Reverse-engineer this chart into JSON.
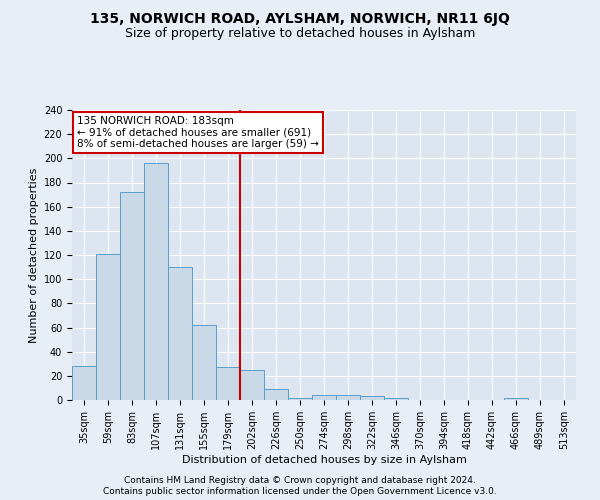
{
  "title1": "135, NORWICH ROAD, AYLSHAM, NORWICH, NR11 6JQ",
  "title2": "Size of property relative to detached houses in Aylsham",
  "xlabel": "Distribution of detached houses by size in Aylsham",
  "ylabel": "Number of detached properties",
  "categories": [
    "35sqm",
    "59sqm",
    "83sqm",
    "107sqm",
    "131sqm",
    "155sqm",
    "179sqm",
    "202sqm",
    "226sqm",
    "250sqm",
    "274sqm",
    "298sqm",
    "322sqm",
    "346sqm",
    "370sqm",
    "394sqm",
    "418sqm",
    "442sqm",
    "466sqm",
    "489sqm",
    "513sqm"
  ],
  "values": [
    28,
    121,
    172,
    196,
    110,
    62,
    27,
    25,
    9,
    2,
    4,
    4,
    3,
    2,
    0,
    0,
    0,
    0,
    2,
    0,
    0
  ],
  "bar_color": "#c9d9e8",
  "bar_edge_color": "#5a9ec9",
  "property_line_x": 6.5,
  "property_line_color": "#cc0000",
  "annotation_text": "135 NORWICH ROAD: 183sqm\n← 91% of detached houses are smaller (691)\n8% of semi-detached houses are larger (59) →",
  "annotation_box_color": "#ffffff",
  "annotation_box_edge_color": "#cc0000",
  "ylim": [
    0,
    240
  ],
  "yticks": [
    0,
    20,
    40,
    60,
    80,
    100,
    120,
    140,
    160,
    180,
    200,
    220,
    240
  ],
  "footer1": "Contains HM Land Registry data © Crown copyright and database right 2024.",
  "footer2": "Contains public sector information licensed under the Open Government Licence v3.0.",
  "background_color": "#e8eef5",
  "plot_background_color": "#dde6f0",
  "grid_color": "#ffffff",
  "title_fontsize": 10,
  "subtitle_fontsize": 9,
  "axis_fontsize": 8,
  "tick_fontsize": 7,
  "annotation_fontsize": 7.5,
  "footer_fontsize": 6.5
}
